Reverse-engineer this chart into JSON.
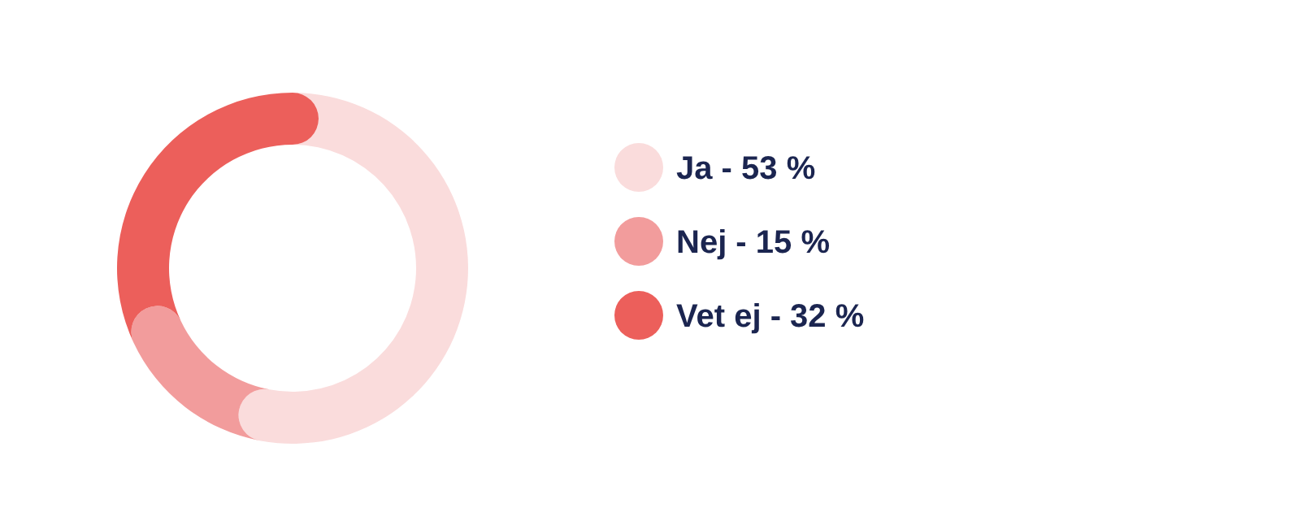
{
  "chart_data": {
    "type": "donut",
    "categories": [
      "Ja",
      "Nej",
      "Vet ej"
    ],
    "values": [
      53,
      15,
      32
    ],
    "value_labels": [
      "53 %",
      "15 %",
      "32 %"
    ],
    "colors": [
      "#fadcdc",
      "#f29c9c",
      "#ec5f5b"
    ],
    "legend": "right"
  }
}
